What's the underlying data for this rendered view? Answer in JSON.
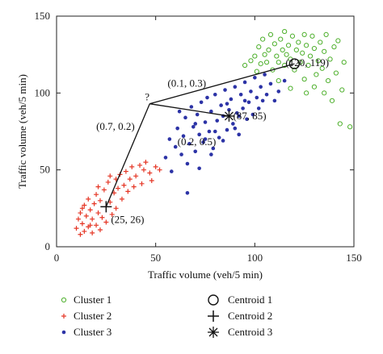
{
  "chart_data": {
    "type": "scatter",
    "xlabel": "Traffic volume (veh/5 min)",
    "ylabel": "Traffic volume (veh/5 min)",
    "xlim": [
      0,
      150
    ],
    "ylim": [
      0,
      150
    ],
    "xticks": [
      0,
      50,
      100,
      150
    ],
    "yticks": [
      0,
      50,
      100,
      150
    ],
    "xtick_labels": [
      "0",
      "50",
      "100",
      "150"
    ],
    "ytick_labels": [
      "0",
      "50",
      "100",
      "150"
    ],
    "grid": false,
    "legend_position": "bottom",
    "series": [
      {
        "name": "Cluster 1",
        "marker": "circle-open",
        "color": "#4caf2a",
        "points": [
          [
            95,
            118
          ],
          [
            98,
            121
          ],
          [
            100,
            124
          ],
          [
            101,
            114
          ],
          [
            102,
            130
          ],
          [
            103,
            119
          ],
          [
            104,
            135
          ],
          [
            105,
            125
          ],
          [
            106,
            120
          ],
          [
            107,
            128
          ],
          [
            108,
            138
          ],
          [
            109,
            115
          ],
          [
            110,
            132
          ],
          [
            111,
            124
          ],
          [
            112,
            120
          ],
          [
            113,
            135
          ],
          [
            114,
            128
          ],
          [
            115,
            118
          ],
          [
            115,
            140
          ],
          [
            116,
            125
          ],
          [
            117,
            131
          ],
          [
            118,
            122
          ],
          [
            119,
            137
          ],
          [
            120,
            115
          ],
          [
            121,
            128
          ],
          [
            122,
            133
          ],
          [
            123,
            120
          ],
          [
            124,
            126
          ],
          [
            125,
            109
          ],
          [
            125,
            138
          ],
          [
            126,
            131
          ],
          [
            127,
            118
          ],
          [
            128,
            124
          ],
          [
            129,
            137
          ],
          [
            130,
            104
          ],
          [
            130,
            129
          ],
          [
            131,
            112
          ],
          [
            132,
            121
          ],
          [
            133,
            133
          ],
          [
            134,
            116
          ],
          [
            135,
            100
          ],
          [
            135,
            127
          ],
          [
            136,
            138
          ],
          [
            137,
            108
          ],
          [
            138,
            122
          ],
          [
            139,
            95
          ],
          [
            140,
            130
          ],
          [
            141,
            113
          ],
          [
            142,
            134
          ],
          [
            143,
            80
          ],
          [
            144,
            102
          ],
          [
            145,
            120
          ],
          [
            148,
            78
          ],
          [
            112,
            108
          ],
          [
            118,
            103
          ],
          [
            126,
            100
          ]
        ]
      },
      {
        "name": "Cluster 2",
        "marker": "plus",
        "color": "#e53524",
        "points": [
          [
            10,
            12
          ],
          [
            11,
            18
          ],
          [
            12,
            8
          ],
          [
            12,
            22
          ],
          [
            13,
            15
          ],
          [
            14,
            10
          ],
          [
            14,
            27
          ],
          [
            15,
            20
          ],
          [
            16,
            13
          ],
          [
            16,
            31
          ],
          [
            17,
            24
          ],
          [
            18,
            9
          ],
          [
            18,
            18
          ],
          [
            19,
            28
          ],
          [
            20,
            14
          ],
          [
            20,
            34
          ],
          [
            21,
            22
          ],
          [
            22,
            11
          ],
          [
            22,
            30
          ],
          [
            23,
            19
          ],
          [
            24,
            37
          ],
          [
            25,
            16
          ],
          [
            25,
            26
          ],
          [
            26,
            42
          ],
          [
            27,
            29
          ],
          [
            28,
            21
          ],
          [
            29,
            35
          ],
          [
            30,
            44
          ],
          [
            30,
            25
          ],
          [
            31,
            38
          ],
          [
            32,
            47
          ],
          [
            33,
            31
          ],
          [
            34,
            40
          ],
          [
            35,
            49
          ],
          [
            36,
            36
          ],
          [
            37,
            44
          ],
          [
            38,
            52
          ],
          [
            39,
            39
          ],
          [
            40,
            46
          ],
          [
            42,
            53
          ],
          [
            43,
            41
          ],
          [
            44,
            50
          ],
          [
            45,
            55
          ],
          [
            47,
            48
          ],
          [
            48,
            43
          ],
          [
            50,
            52
          ],
          [
            52,
            50
          ],
          [
            13,
            25
          ],
          [
            17,
            14
          ],
          [
            21,
            39
          ],
          [
            27,
            46
          ]
        ]
      },
      {
        "name": "Cluster 3",
        "marker": "dot",
        "color": "#2c33a6",
        "points": [
          [
            55,
            58
          ],
          [
            57,
            70
          ],
          [
            58,
            49
          ],
          [
            60,
            65
          ],
          [
            61,
            77
          ],
          [
            62,
            88
          ],
          [
            63,
            60
          ],
          [
            64,
            72
          ],
          [
            65,
            84
          ],
          [
            66,
            54
          ],
          [
            67,
            67
          ],
          [
            68,
            91
          ],
          [
            69,
            78
          ],
          [
            70,
            62
          ],
          [
            71,
            86
          ],
          [
            72,
            73
          ],
          [
            73,
            94
          ],
          [
            74,
            68
          ],
          [
            75,
            81
          ],
          [
            76,
            97
          ],
          [
            77,
            75
          ],
          [
            78,
            88
          ],
          [
            79,
            64
          ],
          [
            80,
            99
          ],
          [
            81,
            82
          ],
          [
            82,
            71
          ],
          [
            83,
            92
          ],
          [
            84,
            85
          ],
          [
            85,
            102
          ],
          [
            86,
            76
          ],
          [
            87,
            89
          ],
          [
            88,
            96
          ],
          [
            89,
            80
          ],
          [
            90,
            104
          ],
          [
            91,
            87
          ],
          [
            92,
            73
          ],
          [
            93,
            99
          ],
          [
            94,
            90
          ],
          [
            95,
            107
          ],
          [
            96,
            83
          ],
          [
            97,
            94
          ],
          [
            98,
            101
          ],
          [
            99,
            86
          ],
          [
            100,
            110
          ],
          [
            101,
            97
          ],
          [
            102,
            90
          ],
          [
            103,
            104
          ],
          [
            104,
            95
          ],
          [
            105,
            112
          ],
          [
            106,
            99
          ],
          [
            108,
            106
          ],
          [
            110,
            95
          ],
          [
            112,
            101
          ],
          [
            115,
            108
          ],
          [
            66,
            35
          ],
          [
            72,
            51
          ],
          [
            78,
            60
          ],
          [
            84,
            69
          ],
          [
            90,
            77
          ],
          [
            95,
            95
          ],
          [
            80,
            75
          ],
          [
            75,
            70
          ],
          [
            70,
            80
          ],
          [
            86,
            93
          ],
          [
            92,
            85
          ]
        ]
      }
    ],
    "centroids": [
      {
        "name": "Centroid 1",
        "marker": "circle-large",
        "x": 120,
        "y": 119,
        "label": "(120, 119)"
      },
      {
        "name": "Centroid 2",
        "marker": "plus-large",
        "x": 25,
        "y": 26,
        "label": "(25, 26)"
      },
      {
        "name": "Centroid 3",
        "marker": "asterisk",
        "x": 87,
        "y": 85,
        "label": "(87, 85)"
      }
    ],
    "query_point": {
      "x": 47,
      "y": 93,
      "label": "?"
    },
    "annotations": [
      {
        "text": "(0.1, 0.3)",
        "x": 56,
        "y": 104
      },
      {
        "text": "(0.7, 0.2)",
        "x": 20,
        "y": 76
      },
      {
        "text": "(0.2, 0.5)",
        "x": 61,
        "y": 66
      }
    ]
  },
  "legend": {
    "items": [
      {
        "label": "Cluster 1",
        "marker": "circle-open"
      },
      {
        "label": "Cluster 2",
        "marker": "plus"
      },
      {
        "label": "Cluster 3",
        "marker": "dot"
      },
      {
        "label": "Centroid 1",
        "marker": "circle-large"
      },
      {
        "label": "Centroid 2",
        "marker": "plus-large"
      },
      {
        "label": "Centroid 3",
        "marker": "asterisk"
      }
    ]
  },
  "colors": {
    "cluster1": "#4caf2a",
    "cluster2": "#e53524",
    "cluster3": "#2c33a6",
    "ink": "#111111"
  }
}
